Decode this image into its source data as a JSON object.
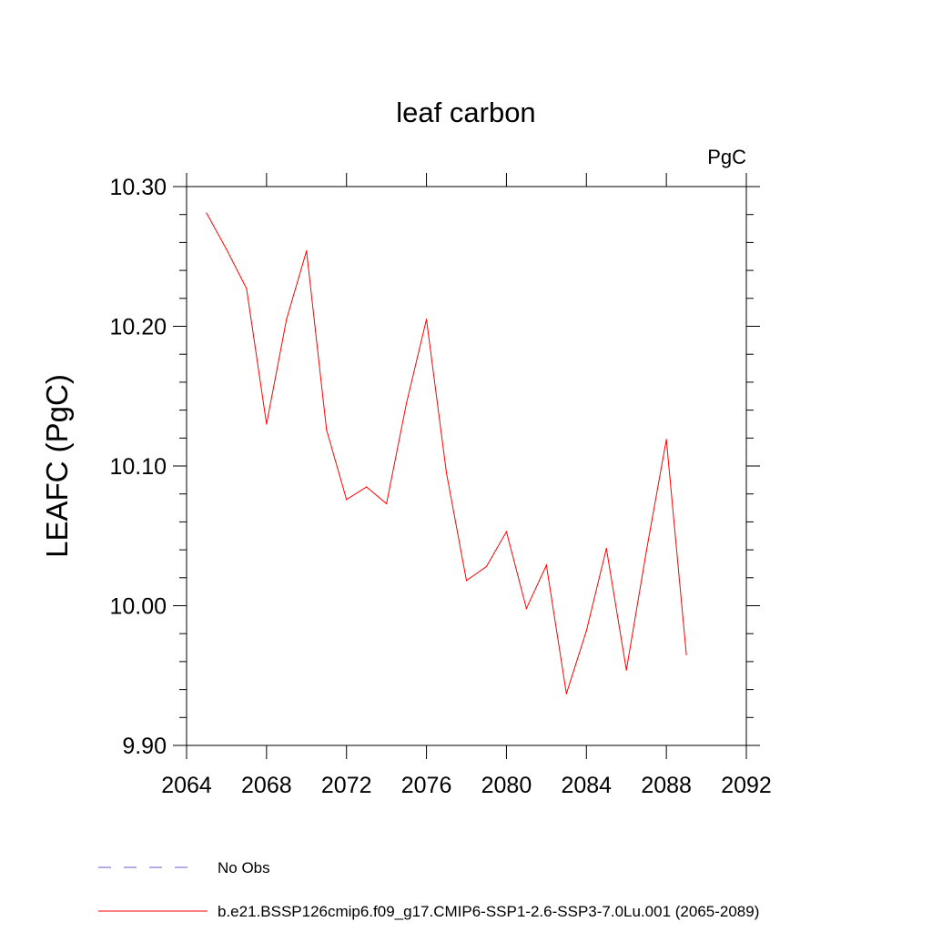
{
  "chart_data": {
    "type": "line",
    "title": "leaf carbon",
    "units": "PgC",
    "xlabel": "",
    "ylabel": "LEAFC  (PgC)",
    "xlim": [
      2064,
      2092
    ],
    "ylim": [
      9.9,
      10.3
    ],
    "x_ticks": [
      2064,
      2068,
      2072,
      2076,
      2080,
      2084,
      2088,
      2092
    ],
    "x_tick_labels": [
      "2064",
      "2068",
      "2072",
      "2076",
      "2080",
      "2084",
      "2088",
      "2092"
    ],
    "y_ticks": [
      9.9,
      10.0,
      10.1,
      10.2,
      10.3
    ],
    "y_tick_labels": [
      "9.90",
      "10.00",
      "10.10",
      "10.20",
      "10.30"
    ],
    "grid": false,
    "legend_position": "bottom-left",
    "legend": [
      {
        "label": "No Obs",
        "style": "dashed",
        "color": "#6a5acd"
      },
      {
        "label": "b.e21.BSSP126cmip6.f09_g17.CMIP6-SSP1-2.6-SSP3-7.0Lu.001 (2065-2089)",
        "style": "solid",
        "color": "#ff0000"
      }
    ],
    "series": [
      {
        "name": "b.e21.BSSP126cmip6.f09_g17.CMIP6-SSP1-2.6-SSP3-7.0Lu.001 (2065-2089)",
        "color": "#ff0000",
        "x": [
          2065,
          2066,
          2067,
          2068,
          2069,
          2070,
          2071,
          2072,
          2073,
          2074,
          2075,
          2076,
          2077,
          2078,
          2079,
          2080,
          2081,
          2082,
          2083,
          2084,
          2085,
          2086,
          2087,
          2088,
          2089
        ],
        "y": [
          10.281,
          10.255,
          10.227,
          10.13,
          10.205,
          10.254,
          10.126,
          10.076,
          10.085,
          10.073,
          10.145,
          10.205,
          10.095,
          10.018,
          10.028,
          10.053,
          9.998,
          10.029,
          9.937,
          9.982,
          10.041,
          9.954,
          10.039,
          10.119,
          9.965
        ]
      }
    ]
  }
}
